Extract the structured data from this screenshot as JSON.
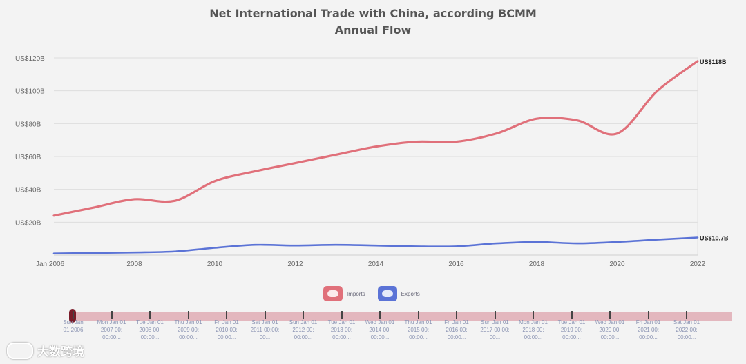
{
  "chart_data": {
    "type": "line",
    "title": "Net International Trade with China, according BCMM",
    "subtitle": "Annual Flow",
    "x_tick_labels": [
      "Jan 2006",
      "2008",
      "2010",
      "2012",
      "2014",
      "2016",
      "2018",
      "2020",
      "2022"
    ],
    "x": [
      2006,
      2007,
      2008,
      2009,
      2010,
      2011,
      2012,
      2013,
      2014,
      2015,
      2016,
      2017,
      2018,
      2019,
      2020,
      2021,
      2022
    ],
    "xlim": [
      2006,
      2022
    ],
    "ylim": [
      0,
      120
    ],
    "y_tick_labels": [
      "US$20B",
      "US$40B",
      "US$60B",
      "US$80B",
      "US$100B",
      "US$120B"
    ],
    "y_ticks": [
      20,
      40,
      60,
      80,
      100,
      120
    ],
    "grid": true,
    "legend_position": "bottom-center",
    "series": [
      {
        "name": "Imports",
        "color": "#e0707a",
        "values": [
          24,
          29,
          34,
          33,
          45,
          51,
          56,
          61,
          66,
          69,
          69,
          74,
          83,
          82,
          74,
          100,
          118
        ],
        "end_label": "US$118B"
      },
      {
        "name": "Exports",
        "color": "#5b73d6",
        "values": [
          1,
          1.3,
          1.6,
          2.2,
          4.4,
          6.2,
          5.8,
          6.2,
          5.8,
          5.3,
          5.3,
          7.1,
          8,
          7.1,
          8,
          9.4,
          10.7
        ],
        "end_label": "US$10.7B"
      }
    ]
  },
  "timeline": {
    "labels": [
      [
        "Sun Jan",
        "01 2006"
      ],
      [
        "Mon Jan 01",
        "2007 00:",
        "00:00..."
      ],
      [
        "Tue Jan 01",
        "2008 00:",
        "00:00..."
      ],
      [
        "Thu Jan 01",
        "2009 00:",
        "00:00..."
      ],
      [
        "Fri Jan 01",
        "2010 00:",
        "00:00..."
      ],
      [
        "Sat Jan 01",
        "2011 00:00:",
        "00..."
      ],
      [
        "Sun Jan 01",
        "2012 00:",
        "00:00..."
      ],
      [
        "Tue Jan 01",
        "2013 00:",
        "00:00..."
      ],
      [
        "Wed Jan 01",
        "2014 00:",
        "00:00..."
      ],
      [
        "Thu Jan 01",
        "2015 00:",
        "00:00..."
      ],
      [
        "Fri Jan 01",
        "2016 00:",
        "00:00..."
      ],
      [
        "Sun Jan 01",
        "2017 00:00:",
        "00..."
      ],
      [
        "Mon Jan 01",
        "2018 00:",
        "00:00..."
      ],
      [
        "Tue Jan 01",
        "2019 00:",
        "00:00..."
      ],
      [
        "Wed Jan 01",
        "2020 00:",
        "00:00..."
      ],
      [
        "Fri Jan 01",
        "2021 00:",
        "00:00..."
      ],
      [
        "Sat Jan 01",
        "2022 00:",
        "00:00..."
      ]
    ]
  },
  "watermark": {
    "text": "大数跨境"
  },
  "colors": {
    "background": "#f3f3f3",
    "grid": "#dddddd",
    "axis_text": "#555555",
    "timeline_track": "#e3b7be",
    "timeline_handle": "#7a1c2a"
  }
}
